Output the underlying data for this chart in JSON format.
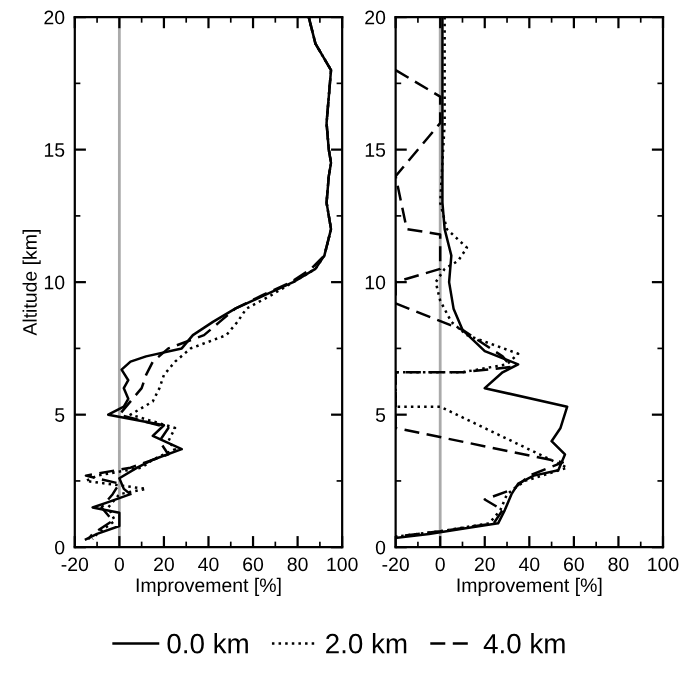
{
  "chart_data": [
    {
      "type": "line",
      "xlabel": "Improvement [%]",
      "ylabel": "Altitude [km]",
      "xlim": [
        -20,
        100
      ],
      "xticks": [
        -20,
        0,
        20,
        40,
        60,
        80,
        {
          "value": 100,
          "label": "100"
        }
      ],
      "ylim": [
        0,
        20
      ],
      "yticks": [
        0,
        5,
        10,
        15,
        20
      ],
      "legend": "bottom",
      "grid": false,
      "ref_lines": [
        {
          "axis": "x",
          "value": 0,
          "color": "#aaaaaa"
        }
      ],
      "series": [
        {
          "name": "0.0 km",
          "color": "#000000",
          "line_style": "solid",
          "x": [
            85,
            88,
            95,
            94,
            93,
            94,
            95,
            94,
            93,
            95,
            92,
            88,
            78,
            65,
            52,
            42,
            33,
            28,
            12,
            5,
            1,
            4,
            2,
            4,
            2,
            -5,
            20,
            15,
            28,
            15,
            8,
            0,
            2,
            5,
            -5,
            -12,
            0,
            0,
            -10,
            -15
          ],
          "values": [
            20,
            19,
            18,
            17,
            16,
            15,
            14.5,
            14,
            13,
            12,
            11,
            10.5,
            10,
            9.5,
            9,
            8.5,
            8,
            7.5,
            7.2,
            7,
            6.7,
            6.3,
            6,
            5.6,
            5.3,
            5,
            4.6,
            4.2,
            3.7,
            3.3,
            3,
            2.6,
            2.2,
            2,
            1.7,
            1.5,
            1.3,
            0.8,
            0.5,
            0.3
          ]
        },
        {
          "name": "2.0 km",
          "color": "#000000",
          "line_style": "dotted",
          "x": [
            85,
            88,
            95,
            94,
            93,
            94,
            95,
            94,
            93,
            95,
            92,
            88,
            78,
            68,
            57,
            53,
            48,
            32,
            25,
            20,
            18,
            15,
            5,
            25,
            22,
            25,
            15,
            10,
            -10,
            -15,
            12,
            0,
            -5,
            -2,
            -10,
            -12
          ],
          "values": [
            20,
            19,
            18,
            17,
            16,
            15,
            14.5,
            14,
            13,
            12,
            11,
            10.5,
            10,
            9.5,
            9,
            8.5,
            8,
            7.5,
            7,
            6.5,
            6,
            5.5,
            5,
            4.5,
            4,
            3.7,
            3.3,
            3,
            2.7,
            2.5,
            2.2,
            2,
            1.5,
            1,
            0.5,
            0.3
          ]
        },
        {
          "name": "4.0 km",
          "color": "#000000",
          "line_style": "dashed",
          "x": [
            85,
            88,
            95,
            94,
            93,
            94,
            95,
            94,
            93,
            95,
            92,
            86,
            77,
            64,
            52,
            45,
            38,
            22,
            15,
            12,
            10,
            5,
            0,
            22,
            18,
            22,
            5,
            -15,
            0,
            -3,
            -8,
            -3,
            -12,
            -14
          ],
          "values": [
            20,
            19,
            18,
            17,
            16,
            15,
            14.5,
            14,
            13,
            12,
            11,
            10.5,
            10,
            9.5,
            9,
            8.5,
            8,
            7.5,
            7,
            6.5,
            6,
            5.5,
            5,
            4.5,
            4,
            3.5,
            3,
            2.7,
            2.4,
            2,
            1.5,
            1,
            0.5,
            0.3
          ]
        }
      ]
    },
    {
      "type": "line",
      "xlabel": "Improvement [%]",
      "xlim": [
        -20,
        100
      ],
      "xticks": [
        -20,
        0,
        20,
        40,
        60,
        80,
        {
          "value": 100,
          "label": "100"
        }
      ],
      "ylim": [
        0,
        20
      ],
      "yticks": [
        0,
        5,
        10,
        15,
        20
      ],
      "grid": false,
      "ref_lines": [
        {
          "axis": "x",
          "value": 0,
          "color": "#aaaaaa"
        }
      ],
      "series": [
        {
          "color": "#000000",
          "line_style": "solid",
          "x": [
            1,
            1,
            1,
            1,
            1,
            2,
            5,
            4,
            6,
            10,
            20,
            35,
            28,
            20,
            57,
            54,
            50,
            56,
            53,
            42,
            35,
            32,
            29,
            26,
            10,
            -5,
            -20
          ],
          "values": [
            20,
            18,
            16,
            14,
            13,
            12,
            11,
            10,
            9,
            8.2,
            7.4,
            6.9,
            6.6,
            6.0,
            5.3,
            4.5,
            4.0,
            3.5,
            2.9,
            2.7,
            2.4,
            2.0,
            1.4,
            0.9,
            0.7,
            0.5,
            0.35
          ]
        },
        {
          "color": "#000000",
          "line_style": "dotted",
          "x": [
            2,
            2,
            0,
            3,
            12,
            8,
            2,
            -2,
            0,
            5,
            12,
            35,
            30,
            10,
            -20,
            -20,
            0,
            57,
            38,
            30,
            27,
            22,
            0,
            -20
          ],
          "values": [
            20,
            16,
            13,
            12,
            11.3,
            10.8,
            10.5,
            10,
            9.3,
            8.5,
            8,
            7.3,
            6.9,
            6.6,
            6.6,
            5.3,
            5.3,
            3,
            2.5,
            2,
            1.4,
            0.9,
            0.6,
            0.4
          ]
        },
        {
          "color": "#000000",
          "line_style": "dashed",
          "x": [
            -20,
            0,
            0,
            -20,
            -15,
            0,
            0,
            -20,
            -20,
            10,
            28,
            32,
            10,
            -20,
            -20,
            -20,
            55,
            40,
            33,
            20,
            28,
            24,
            0,
            -20
          ],
          "values": [
            18,
            17,
            16,
            14,
            12,
            11.8,
            10.5,
            10,
            9.2,
            8.2,
            7.2,
            6.8,
            6.6,
            6.6,
            5.5,
            4.5,
            3.2,
            2.7,
            2.2,
            1.8,
            1.4,
            0.9,
            0.6,
            0.4
          ]
        }
      ]
    }
  ]
}
